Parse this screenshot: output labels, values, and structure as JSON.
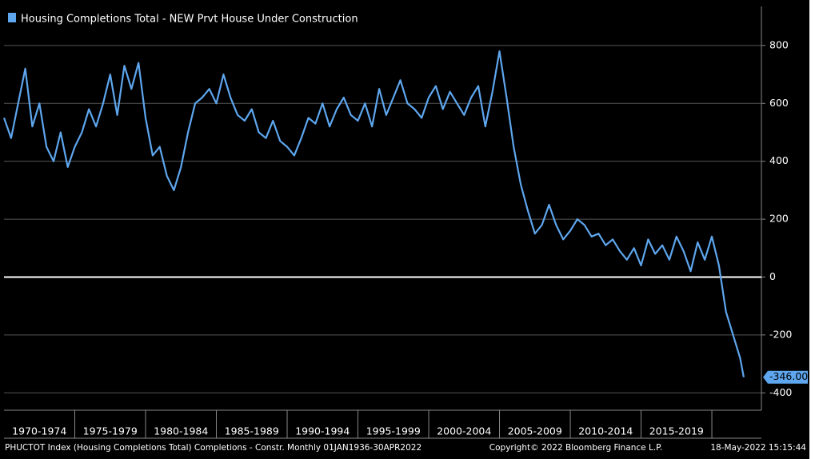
{
  "chart_data": {
    "type": "line",
    "legend": "Housing Completions Total - NEW Prvt House Under Construction",
    "footer_left": "PHUCTOT Index (Housing Completions Total) Completions - Constr. Monthly 01JAN1936-30APR2022",
    "footer_center": "Copyright© 2022 Bloomberg Finance L.P.",
    "footer_right": "18-May-2022 15:15:44",
    "band_labels": [
      "1970-1974",
      "1975-1979",
      "1980-1984",
      "1985-1989",
      "1990-1994",
      "1995-1999",
      "2000-2004",
      "2005-2009",
      "2010-2014",
      "2015-2019"
    ],
    "xlim": [
      1970,
      2023.5
    ],
    "xticks": [
      1975,
      1980,
      1985,
      1990,
      1995,
      2000,
      2005,
      2010,
      2015,
      2020
    ],
    "ylim": [
      -460,
      935
    ],
    "yticks": [
      -400,
      -200,
      0,
      200,
      400,
      600,
      800
    ],
    "grid": true,
    "series": [
      {
        "name": "Housing Completions Total - NEW Prvt House Under Construction",
        "color": "#5ea6ee",
        "x": [
          1970,
          1970.5,
          1971,
          1971.5,
          1972,
          1972.5,
          1973,
          1973.5,
          1974,
          1974.5,
          1975,
          1975.5,
          1976,
          1976.5,
          1977,
          1977.5,
          1978,
          1978.5,
          1979,
          1979.5,
          1980,
          1980.5,
          1981,
          1981.5,
          1982,
          1982.5,
          1983,
          1983.5,
          1984,
          1984.5,
          1985,
          1985.5,
          1986,
          1986.5,
          1987,
          1987.5,
          1988,
          1988.5,
          1989,
          1989.5,
          1990,
          1990.5,
          1991,
          1991.5,
          1992,
          1992.5,
          1993,
          1993.5,
          1994,
          1994.5,
          1995,
          1995.5,
          1996,
          1996.5,
          1997,
          1997.5,
          1998,
          1998.5,
          1999,
          1999.5,
          2000,
          2000.5,
          2001,
          2001.5,
          2002,
          2002.5,
          2003,
          2003.5,
          2004,
          2004.5,
          2005,
          2005.5,
          2006,
          2006.5,
          2007,
          2007.5,
          2008,
          2008.5,
          2009,
          2009.5,
          2010,
          2010.5,
          2011,
          2011.5,
          2012,
          2012.5,
          2013,
          2013.5,
          2014,
          2014.5,
          2015,
          2015.5,
          2016,
          2016.5,
          2017,
          2017.5,
          2018,
          2018.5,
          2019,
          2019.5,
          2020,
          2020.5,
          2021,
          2021.5,
          2022,
          2022.25
        ],
        "values": [
          550,
          480,
          600,
          720,
          520,
          600,
          450,
          400,
          500,
          380,
          450,
          500,
          580,
          520,
          600,
          700,
          560,
          730,
          650,
          740,
          550,
          420,
          450,
          350,
          300,
          380,
          500,
          600,
          620,
          650,
          600,
          700,
          620,
          560,
          540,
          580,
          500,
          480,
          540,
          470,
          450,
          420,
          480,
          550,
          530,
          600,
          520,
          580,
          620,
          560,
          540,
          600,
          520,
          650,
          560,
          620,
          680,
          600,
          580,
          550,
          620,
          660,
          580,
          640,
          600,
          560,
          620,
          660,
          520,
          640,
          780,
          620,
          450,
          320,
          230,
          150,
          180,
          250,
          180,
          130,
          160,
          200,
          180,
          140,
          150,
          110,
          130,
          90,
          60,
          100,
          40,
          130,
          80,
          110,
          60,
          140,
          90,
          20,
          120,
          60,
          140,
          40,
          -120,
          -200,
          -280,
          -346
        ],
        "value_labels": [
          null,
          null,
          null,
          null,
          null,
          null,
          null,
          null,
          null,
          null,
          null,
          null,
          null,
          null,
          null,
          null,
          null,
          null,
          null,
          null,
          null,
          null,
          null,
          null,
          null,
          null,
          null,
          null,
          null,
          null,
          null,
          null,
          null,
          null,
          null,
          null,
          null,
          null,
          null,
          null,
          null,
          null,
          null,
          null,
          null,
          null,
          null,
          null,
          null,
          null,
          null,
          null,
          null,
          null,
          null,
          null,
          null,
          null,
          null,
          null,
          null,
          null,
          null,
          null,
          null,
          null,
          null,
          null,
          null,
          null,
          null,
          null,
          null,
          null,
          null,
          null,
          null,
          null,
          null,
          null,
          null,
          null,
          null,
          null,
          null,
          null,
          null,
          null,
          null,
          null,
          null,
          null,
          null,
          null,
          null,
          null,
          null,
          null,
          null,
          null,
          null,
          null,
          null,
          null,
          null,
          "-346.00"
        ]
      }
    ]
  }
}
